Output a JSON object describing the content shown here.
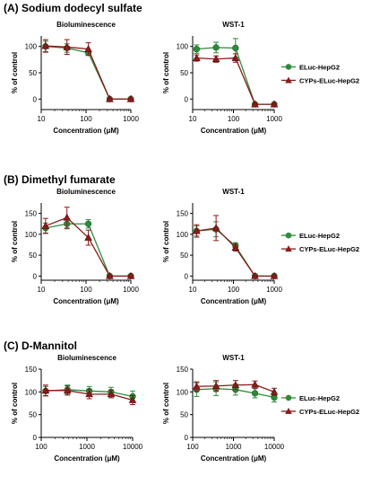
{
  "colors": {
    "ELuc-HepG2": "#2e8b3a",
    "CYPs-Elc-HepG2": "#8b1a1a",
    "axis": "#000000"
  },
  "panels": [
    {
      "title": "(A) Sodium dodecyl sulfate"
    },
    {
      "title": "(B) Dimethyl fumarate"
    },
    {
      "title": "(C) D-Mannitol"
    }
  ],
  "chart_data": [
    {
      "type": "line",
      "panel": 0,
      "title": "Bioluminescence",
      "xlabel": "Concentration (μM)",
      "ylabel": "% of control",
      "xscale": "log",
      "xlim": [
        10,
        1000
      ],
      "ylim": [
        -20,
        120
      ],
      "xticks": [
        10,
        100,
        1000
      ],
      "xticklabels": [
        "10",
        "100",
        "1000"
      ],
      "yticks": [
        0,
        50,
        100
      ],
      "yticklabels": [
        "0",
        "50",
        "100"
      ],
      "legend": false,
      "series": [
        {
          "name": "ELuc-HepG2",
          "marker": "circle",
          "x": [
            12.5,
            37.5,
            112.5,
            337.5,
            1000
          ],
          "y": [
            100,
            97,
            88,
            0,
            0
          ],
          "err": [
            10,
            8,
            5,
            2,
            2
          ]
        },
        {
          "name": "CYPs-ELuc-HepG2",
          "marker": "triangle",
          "x": [
            12.5,
            37.5,
            112.5,
            337.5,
            1000
          ],
          "y": [
            101,
            99,
            95,
            0,
            0
          ],
          "err": [
            12,
            14,
            12,
            2,
            2
          ]
        }
      ]
    },
    {
      "type": "line",
      "panel": 0,
      "title": "WST-1",
      "xlabel": "Concentration (μM)",
      "ylabel": "% of control",
      "xscale": "log",
      "xlim": [
        10,
        1000
      ],
      "ylim": [
        -20,
        120
      ],
      "xticks": [
        10,
        100,
        1000
      ],
      "xticklabels": [
        "10",
        "100",
        "1000"
      ],
      "yticks": [
        0,
        50,
        100
      ],
      "yticklabels": [
        "0",
        "50",
        "100"
      ],
      "legend": true,
      "legend_position": "right",
      "series": [
        {
          "name": "ELuc-HepG2",
          "marker": "circle",
          "x": [
            12.5,
            37.5,
            112.5,
            337.5,
            1000
          ],
          "y": [
            95,
            98,
            97,
            -10,
            -10
          ],
          "err": [
            8,
            10,
            18,
            2,
            2
          ]
        },
        {
          "name": "CYPs-ELuc-HepG2",
          "marker": "triangle",
          "x": [
            12.5,
            37.5,
            112.5,
            337.5,
            1000
          ],
          "y": [
            78,
            76,
            78,
            -10,
            -10
          ],
          "err": [
            6,
            6,
            8,
            2,
            2
          ]
        }
      ]
    },
    {
      "type": "line",
      "panel": 1,
      "title": "Bioluminescence",
      "xlabel": "Concentration (μM)",
      "ylabel": "% of control",
      "xscale": "log",
      "xlim": [
        10,
        1000
      ],
      "ylim": [
        -10,
        175
      ],
      "xticks": [
        10,
        100,
        1000
      ],
      "xticklabels": [
        "10",
        "100",
        "1000"
      ],
      "yticks": [
        0,
        50,
        100,
        150
      ],
      "yticklabels": [
        "0",
        "50",
        "100",
        "150"
      ],
      "legend": false,
      "series": [
        {
          "name": "ELuc-HepG2",
          "marker": "circle",
          "x": [
            12.5,
            37.5,
            112.5,
            337.5,
            1000
          ],
          "y": [
            115,
            125,
            125,
            0,
            0
          ],
          "err": [
            12,
            12,
            10,
            2,
            2
          ]
        },
        {
          "name": "CYPs-ELuc-HepG2",
          "marker": "triangle",
          "x": [
            12.5,
            37.5,
            112.5,
            337.5,
            1000
          ],
          "y": [
            120,
            140,
            92,
            0,
            0
          ],
          "err": [
            18,
            25,
            18,
            2,
            2
          ]
        }
      ]
    },
    {
      "type": "line",
      "panel": 1,
      "title": "WST-1",
      "xlabel": "Concentration (μM)",
      "ylabel": "% of control",
      "xscale": "log",
      "xlim": [
        10,
        1000
      ],
      "ylim": [
        -10,
        175
      ],
      "xticks": [
        10,
        100,
        1000
      ],
      "xticklabels": [
        "10",
        "100",
        "1000"
      ],
      "yticks": [
        0,
        50,
        100,
        150
      ],
      "yticklabels": [
        "0",
        "50",
        "100",
        "150"
      ],
      "legend": true,
      "legend_position": "right",
      "series": [
        {
          "name": "ELuc-HepG2",
          "marker": "circle",
          "x": [
            12.5,
            37.5,
            112.5,
            337.5,
            1000
          ],
          "y": [
            108,
            112,
            72,
            0,
            0
          ],
          "err": [
            12,
            18,
            8,
            2,
            2
          ]
        },
        {
          "name": "CYPs-ELuc-HepG2",
          "marker": "triangle",
          "x": [
            12.5,
            37.5,
            112.5,
            337.5,
            1000
          ],
          "y": [
            108,
            115,
            68,
            0,
            0
          ],
          "err": [
            15,
            30,
            8,
            2,
            2
          ]
        }
      ]
    },
    {
      "type": "line",
      "panel": 2,
      "title": "Bioluminescence",
      "xlabel": "Concentration (μM)",
      "ylabel": "% of control",
      "xscale": "log",
      "xlim": [
        100,
        10000
      ],
      "ylim": [
        0,
        150
      ],
      "xticks": [
        100,
        1000,
        10000
      ],
      "xticklabels": [
        "100",
        "1000",
        "10000"
      ],
      "yticks": [
        0,
        50,
        100,
        150
      ],
      "yticklabels": [
        "0",
        "50",
        "100",
        "150"
      ],
      "legend": false,
      "series": [
        {
          "name": "ELuc-HepG2",
          "marker": "circle",
          "x": [
            125,
            375,
            1125,
            3375,
            10000
          ],
          "y": [
            102,
            105,
            102,
            100,
            90
          ],
          "err": [
            10,
            10,
            10,
            10,
            12
          ]
        },
        {
          "name": "CYPs-ELuc-HepG2",
          "marker": "triangle",
          "x": [
            125,
            375,
            1125,
            3375,
            10000
          ],
          "y": [
            103,
            103,
            95,
            95,
            82
          ],
          "err": [
            12,
            10,
            10,
            8,
            10
          ]
        }
      ]
    },
    {
      "type": "line",
      "panel": 2,
      "title": "WST-1",
      "xlabel": "Concentration (μM)",
      "ylabel": "% of control",
      "xscale": "log",
      "xlim": [
        100,
        10000
      ],
      "ylim": [
        0,
        150
      ],
      "xticks": [
        100,
        1000,
        10000
      ],
      "xticklabels": [
        "100",
        "1000",
        "10000"
      ],
      "yticks": [
        0,
        50,
        100,
        150
      ],
      "yticklabels": [
        "0",
        "50",
        "100",
        "150"
      ],
      "legend": true,
      "legend_position": "right",
      "series": [
        {
          "name": "ELuc-HepG2",
          "marker": "circle",
          "x": [
            125,
            375,
            1125,
            3375,
            10000
          ],
          "y": [
            105,
            107,
            105,
            97,
            88
          ],
          "err": [
            15,
            15,
            12,
            10,
            10
          ]
        },
        {
          "name": "CYPs-ELuc-HepG2",
          "marker": "triangle",
          "x": [
            125,
            375,
            1125,
            3375,
            10000
          ],
          "y": [
            112,
            113,
            115,
            116,
            100
          ],
          "err": [
            10,
            12,
            10,
            8,
            8
          ]
        }
      ]
    }
  ]
}
